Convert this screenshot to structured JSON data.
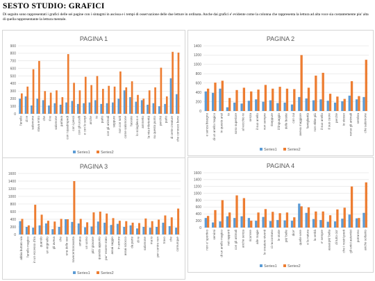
{
  "page": {
    "title": "SESTO STUDIO: GRAFICI",
    "intro": "Di seguito sono rappresentati i grafici delle sei pagine con i sintagmi in ascissa e i tempi di osservazione delle due letture in ordinata. Anche dai grafici e' evidente come la colonna che rappresenta la lettura ad alta voce sia costantemente piu' alta di quella rappresentante la lettura mentale."
  },
  "colors": {
    "series1": "#5b9bd5",
    "series2": "#ed7d31",
    "grid": "#d9d9d9",
    "axis_text": "#595959"
  },
  "chart_data": [
    {
      "type": "bar",
      "title": "PAGINA 1",
      "ylim": [
        0,
        900
      ],
      "yticks": [
        0,
        100,
        200,
        300,
        400,
        500,
        600,
        700,
        800,
        900
      ],
      "categories": [
        "l'anello",
        "di re",
        "salomone",
        "stava entro",
        "che",
        "il re",
        "salomone",
        "parlava",
        "con i quadrupedi",
        "con i pesci",
        "con gli uccelli",
        "e con le serpi",
        "anche",
        "io",
        "parlo",
        "con gli animali",
        "seppure",
        "non con tutti",
        "come salomone",
        "faceste",
        "lo scioglievo e",
        "ammetto",
        "la mia inferiorità",
        "su questo punto",
        "perchè",
        "parlo",
        "di certe creature",
        "che conosco bene"
      ],
      "series": [
        {
          "name": "Series1",
          "values": [
            200,
            230,
            110,
            200,
            180,
            110,
            140,
            120,
            150,
            170,
            130,
            140,
            150,
            180,
            130,
            140,
            150,
            200,
            310,
            220,
            160,
            180,
            120,
            140,
            100,
            130,
            470,
            260
          ]
        },
        {
          "name": "Series2",
          "values": [
            270,
            360,
            590,
            700,
            300,
            280,
            310,
            220,
            790,
            410,
            310,
            490,
            380,
            500,
            330,
            370,
            360,
            560,
            350,
            430,
            250,
            200,
            310,
            350,
            610,
            230,
            820,
            810
          ]
        }
      ]
    },
    {
      "type": "bar",
      "title": "PAGINA 2",
      "ylim": [
        0,
        1400
      ],
      "yticks": [
        0,
        200,
        400,
        600,
        800,
        1000,
        1200,
        1400
      ],
      "categories": [
        "e senza bisogno",
        "di un anello magico",
        "in questo anzi",
        "io",
        "sono superiore",
        "al vecchio re",
        "senza",
        "il suo anello",
        "non sempre",
        "riseppure",
        "il linguaggio",
        "delle bestie",
        "con cui",
        "aveva maggiore",
        "famigliarità",
        "non ebbe più",
        "il suo anello",
        "il suo cuore",
        "perchè",
        "io stesso",
        "verso gli animali",
        "sembra",
        "che salomone"
      ],
      "series": [
        {
          "name": "Series1",
          "values": [
            420,
            390,
            480,
            80,
            180,
            160,
            220,
            250,
            200,
            230,
            170,
            180,
            140,
            300,
            270,
            230,
            250,
            220,
            180,
            210,
            330,
            250,
            300
          ]
        },
        {
          "name": "Series2",
          "values": [
            480,
            610,
            650,
            280,
            450,
            500,
            420,
            460,
            560,
            480,
            520,
            480,
            470,
            1200,
            500,
            760,
            820,
            370,
            310,
            260,
            640,
            320,
            1100
          ]
        }
      ]
    },
    {
      "type": "bar",
      "title": "PAGINA 3",
      "ylim": [
        0,
        1600
      ],
      "yticks": [
        0,
        200,
        400,
        600,
        800,
        1000,
        1200,
        1400,
        1600
      ],
      "categories": [
        "abbia buttato via",
        "l'anello magico",
        "in un eccesso d'ira",
        "quando",
        "un virginello",
        "gli aveva",
        "che",
        "una delle sue",
        "novecentonovanta",
        "amava",
        "un uomo",
        "più' giovane",
        "quando appunto",
        "pur' essere stato",
        "assai saggio",
        "in amore",
        "assai sciocco",
        "da parte",
        "di re",
        "salomone",
        "ma io",
        "per contro non",
        "trovo",
        "che",
        "comunque"
      ],
      "series": [
        {
          "name": "Series1",
          "values": [
            350,
            200,
            180,
            240,
            290,
            140,
            200,
            400,
            330,
            290,
            190,
            210,
            340,
            310,
            250,
            280,
            200,
            240,
            160,
            200,
            180,
            200,
            310,
            220,
            180
          ]
        },
        {
          "name": "Series2",
          "values": [
            410,
            240,
            780,
            520,
            360,
            340,
            410,
            400,
            1400,
            410,
            320,
            580,
            600,
            550,
            430,
            360,
            350,
            310,
            300,
            420,
            350,
            390,
            500,
            450,
            680
          ]
        }
      ]
    },
    {
      "type": "bar",
      "title": "PAGINA 4",
      "ylim": [
        0,
        1600
      ],
      "yticks": [
        0,
        200,
        400,
        600,
        800,
        1000,
        1200,
        1400,
        1600
      ],
      "categories": [
        "non e' sportivo",
        "servirsi",
        "di un anello magico",
        "nei rapporti",
        "con gli animali",
        "anche senza",
        "ricorrere",
        "alle magie",
        "le creature viventi",
        "ci raccontano",
        "le storie",
        "più' belle",
        "dice'",
        "quelle vere",
        "e la natura",
        "la verità",
        "e' sempre",
        "assai più' bella",
        "di tutto cio'",
        "che i nostri poeti",
        "gli unici autentici",
        "potranno",
        "anche soltanto"
      ],
      "series": [
        {
          "name": "Series1",
          "values": [
            280,
            150,
            180,
            330,
            280,
            330,
            280,
            200,
            310,
            190,
            220,
            210,
            200,
            700,
            430,
            250,
            220,
            170,
            180,
            260,
            380,
            270,
            430
          ]
        },
        {
          "name": "Series2",
          "values": [
            340,
            510,
            800,
            440,
            940,
            860,
            200,
            440,
            540,
            460,
            420,
            440,
            300,
            620,
            590,
            470,
            470,
            360,
            530,
            580,
            1200,
            280,
            1320
          ]
        }
      ]
    }
  ]
}
